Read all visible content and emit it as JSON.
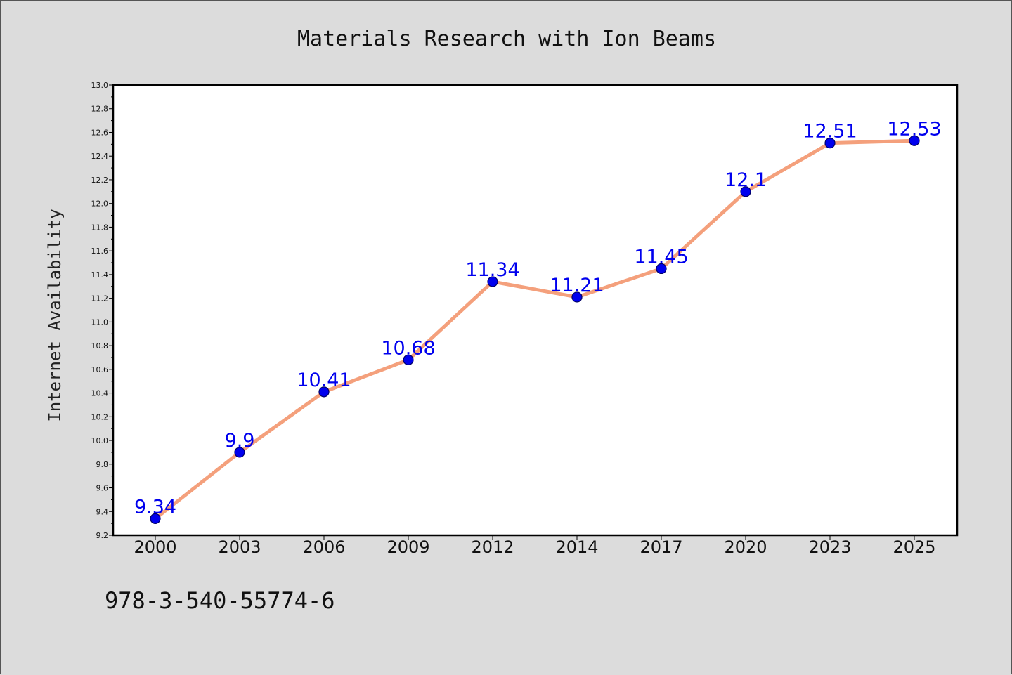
{
  "chart_data": {
    "type": "line",
    "title": "Materials Research with Ion Beams",
    "xlabel": "",
    "ylabel": "Internet Availability",
    "categories": [
      "2000",
      "2003",
      "2006",
      "2009",
      "2012",
      "2014",
      "2017",
      "2020",
      "2023",
      "2025"
    ],
    "series": [
      {
        "values": [
          9.34,
          9.9,
          10.41,
          10.68,
          11.34,
          11.21,
          11.45,
          12.1,
          12.51,
          12.53
        ],
        "data_labels": [
          "9.34",
          "9.9",
          "10.41",
          "10.68",
          "11.34",
          "11.21",
          "11.45",
          "12.1",
          "12.51",
          "12.53"
        ]
      }
    ],
    "ylim": [
      9.2,
      13.0
    ],
    "yticks": [
      "9.2",
      "9.4",
      "9.6",
      "9.8",
      "10.0",
      "10.2",
      "10.4",
      "10.6",
      "10.8",
      "11.0",
      "11.2",
      "11.4",
      "11.6",
      "11.8",
      "12.0",
      "12.2",
      "12.4",
      "12.6",
      "12.8",
      "13.0"
    ],
    "grid": false,
    "legend": "none",
    "colors": {
      "line": "#f4a07c",
      "marker": "#0000ee",
      "marker_edge": "#000066",
      "data_label": "#0000ee",
      "plot_background": "#ffffff",
      "figure_background": "#dcdcdc"
    }
  },
  "footnote": "978-3-540-55774-6"
}
